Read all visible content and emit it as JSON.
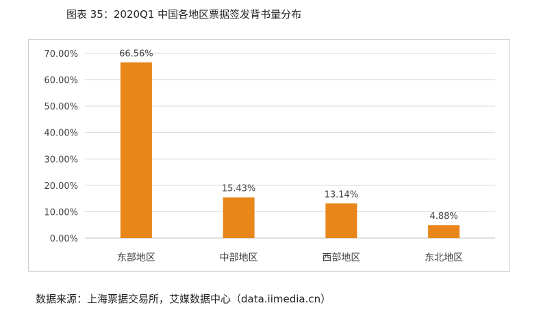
{
  "figure_title": "图表 35：2020Q1 中国各地区票据签发背书量分布",
  "source_note": "数据来源：上海票据交易所，艾媒数据中心（data.iimedia.cn）",
  "colors": {
    "bar": "#E8861A",
    "grid": "#d9d9d9",
    "axis": "#bfbfbf"
  },
  "chart_data": {
    "type": "bar",
    "title": "",
    "xlabel": "",
    "ylabel": "",
    "categories": [
      "东部地区",
      "中部地区",
      "西部地区",
      "东北地区"
    ],
    "values": [
      66.56,
      15.43,
      13.14,
      4.88
    ],
    "value_labels": [
      "66.56%",
      "15.43%",
      "13.14%",
      "4.88%"
    ],
    "ylim": [
      0,
      70
    ],
    "yticks": [
      0,
      10,
      20,
      30,
      40,
      50,
      60,
      70
    ],
    "ytick_labels": [
      "0.00%",
      "10.00%",
      "20.00%",
      "30.00%",
      "40.00%",
      "50.00%",
      "60.00%",
      "70.00%"
    ],
    "grid": true,
    "legend": "none"
  }
}
